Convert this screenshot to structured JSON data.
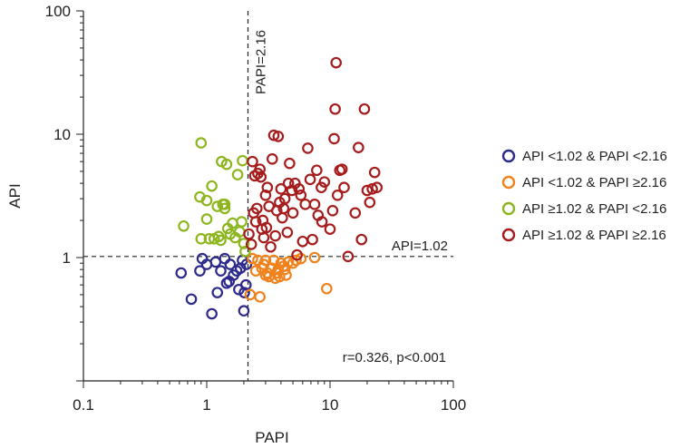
{
  "chart_data": {
    "type": "scatter",
    "title": "",
    "xlabel": "PAPI",
    "ylabel": "API",
    "xscale": "log",
    "yscale": "log",
    "xlim": [
      0.1,
      100
    ],
    "ylim": [
      0.1,
      100
    ],
    "x_tick_labels": [
      "0.1",
      "1",
      "10",
      "100"
    ],
    "x_tick_values": [
      0.1,
      1,
      10,
      100
    ],
    "y_tick_labels": [
      "1",
      "10",
      "100"
    ],
    "y_tick_values": [
      1,
      10,
      100
    ],
    "grid": false,
    "legend_position": "right",
    "reference_lines": [
      {
        "orientation": "vertical",
        "value": 2.16,
        "label": "PAPI=2.16",
        "style": "dashed"
      },
      {
        "orientation": "horizontal",
        "value": 1.02,
        "label": "API=1.02",
        "style": "dashed"
      }
    ],
    "annotation": "r=0.326, p<0.001",
    "series": [
      {
        "name": "API <1.02 & PAPI <2.16",
        "color": "#2d2a8c",
        "points": [
          [
            0.62,
            0.75
          ],
          [
            0.75,
            0.46
          ],
          [
            0.88,
            0.78
          ],
          [
            0.92,
            0.98
          ],
          [
            1.0,
            0.88
          ],
          [
            1.1,
            0.35
          ],
          [
            1.18,
            0.92
          ],
          [
            1.22,
            0.52
          ],
          [
            1.3,
            0.78
          ],
          [
            1.4,
            0.98
          ],
          [
            1.45,
            0.62
          ],
          [
            1.55,
            0.88
          ],
          [
            1.65,
            0.72
          ],
          [
            1.75,
            0.78
          ],
          [
            1.82,
            0.55
          ],
          [
            1.88,
            0.82
          ],
          [
            1.95,
            0.95
          ],
          [
            2.0,
            0.37
          ],
          [
            2.02,
            0.52
          ],
          [
            2.08,
            0.6
          ],
          [
            2.1,
            0.88
          ],
          [
            1.52,
            0.64
          ]
        ]
      },
      {
        "name": "API <1.02 & PAPI ≥2.16",
        "color": "#f0821e",
        "points": [
          [
            2.25,
            0.5
          ],
          [
            2.35,
            0.98
          ],
          [
            2.5,
            0.78
          ],
          [
            2.6,
            0.95
          ],
          [
            2.7,
            0.48
          ],
          [
            2.8,
            0.82
          ],
          [
            2.9,
            0.88
          ],
          [
            3.0,
            0.95
          ],
          [
            3.1,
            0.75
          ],
          [
            3.2,
            0.7
          ],
          [
            3.35,
            0.82
          ],
          [
            3.5,
            0.95
          ],
          [
            3.6,
            0.68
          ],
          [
            3.7,
            0.75
          ],
          [
            3.8,
            0.8
          ],
          [
            3.9,
            0.7
          ],
          [
            4.0,
            0.9
          ],
          [
            4.2,
            0.85
          ],
          [
            4.4,
            0.72
          ],
          [
            4.6,
            0.92
          ],
          [
            5.0,
            0.9
          ],
          [
            5.3,
            0.95
          ],
          [
            5.8,
            0.98
          ],
          [
            7.5,
            1.0
          ],
          [
            9.4,
            0.56
          ],
          [
            3.0,
            0.72
          ],
          [
            4.3,
            0.8
          ]
        ]
      },
      {
        "name": "API ≥1.02 & PAPI <2.16",
        "color": "#8db61e",
        "points": [
          [
            0.65,
            1.8
          ],
          [
            0.9,
            8.5
          ],
          [
            0.88,
            3.1
          ],
          [
            0.9,
            1.42
          ],
          [
            1.0,
            2.05
          ],
          [
            1.0,
            2.9
          ],
          [
            1.05,
            1.42
          ],
          [
            1.1,
            3.8
          ],
          [
            1.15,
            1.42
          ],
          [
            1.22,
            2.6
          ],
          [
            1.25,
            1.48
          ],
          [
            1.3,
            1.38
          ],
          [
            1.32,
            6.0
          ],
          [
            1.35,
            2.7
          ],
          [
            1.4,
            2.5
          ],
          [
            1.45,
            5.7
          ],
          [
            1.48,
            1.72
          ],
          [
            1.55,
            1.55
          ],
          [
            1.62,
            1.9
          ],
          [
            1.7,
            1.45
          ],
          [
            1.78,
            4.7
          ],
          [
            1.85,
            1.62
          ],
          [
            1.92,
            1.95
          ],
          [
            2.0,
            1.3
          ],
          [
            1.95,
            6.1
          ],
          [
            2.05,
            1.12
          ],
          [
            1.4,
            2.7
          ]
        ]
      },
      {
        "name": "API ≥1.02 & PAPI ≥2.16",
        "color": "#a61c1c",
        "points": [
          [
            2.2,
            1.55
          ],
          [
            2.3,
            1.28
          ],
          [
            2.35,
            6.0
          ],
          [
            2.4,
            2.3
          ],
          [
            2.45,
            4.6
          ],
          [
            2.5,
            1.95
          ],
          [
            2.55,
            2.5
          ],
          [
            2.6,
            4.8
          ],
          [
            2.7,
            5.2
          ],
          [
            2.75,
            4.5
          ],
          [
            2.8,
            1.7
          ],
          [
            2.85,
            2.0
          ],
          [
            2.9,
            1.45
          ],
          [
            3.0,
            3.2
          ],
          [
            3.05,
            1.75
          ],
          [
            3.1,
            3.7
          ],
          [
            3.2,
            2.6
          ],
          [
            3.3,
            1.22
          ],
          [
            3.4,
            6.3
          ],
          [
            3.5,
            9.8
          ],
          [
            3.6,
            1.5
          ],
          [
            3.7,
            2.4
          ],
          [
            3.8,
            9.6
          ],
          [
            3.9,
            2.8
          ],
          [
            4.0,
            3.6
          ],
          [
            4.1,
            2.1
          ],
          [
            4.2,
            2.5
          ],
          [
            4.3,
            3.0
          ],
          [
            4.5,
            1.6
          ],
          [
            4.6,
            4.0
          ],
          [
            4.7,
            5.8
          ],
          [
            4.9,
            3.5
          ],
          [
            5.0,
            2.3
          ],
          [
            5.2,
            4.0
          ],
          [
            5.4,
            1.05
          ],
          [
            5.6,
            3.6
          ],
          [
            5.8,
            3.2
          ],
          [
            6.0,
            1.35
          ],
          [
            6.3,
            2.7
          ],
          [
            6.6,
            7.7
          ],
          [
            6.9,
            4.3
          ],
          [
            7.2,
            1.4
          ],
          [
            7.5,
            2.7
          ],
          [
            7.8,
            5.1
          ],
          [
            8.0,
            2.2
          ],
          [
            8.5,
            3.7
          ],
          [
            9.0,
            4.1
          ],
          [
            10.0,
            1.7
          ],
          [
            10.5,
            2.4
          ],
          [
            10.8,
            9.2
          ],
          [
            11.0,
            16.0
          ],
          [
            11.2,
            38.0
          ],
          [
            11.5,
            3.2
          ],
          [
            12.0,
            5.1
          ],
          [
            12.5,
            5.2
          ],
          [
            13.0,
            3.7
          ],
          [
            14.0,
            1.02
          ],
          [
            16.0,
            2.3
          ],
          [
            17.0,
            7.8
          ],
          [
            18.0,
            1.4
          ],
          [
            19.0,
            16.0
          ],
          [
            20.0,
            3.5
          ],
          [
            21.0,
            2.8
          ],
          [
            22.0,
            3.6
          ],
          [
            23.0,
            4.9
          ],
          [
            24.0,
            3.7
          ],
          [
            8.6,
            1.95
          ]
        ]
      }
    ]
  }
}
